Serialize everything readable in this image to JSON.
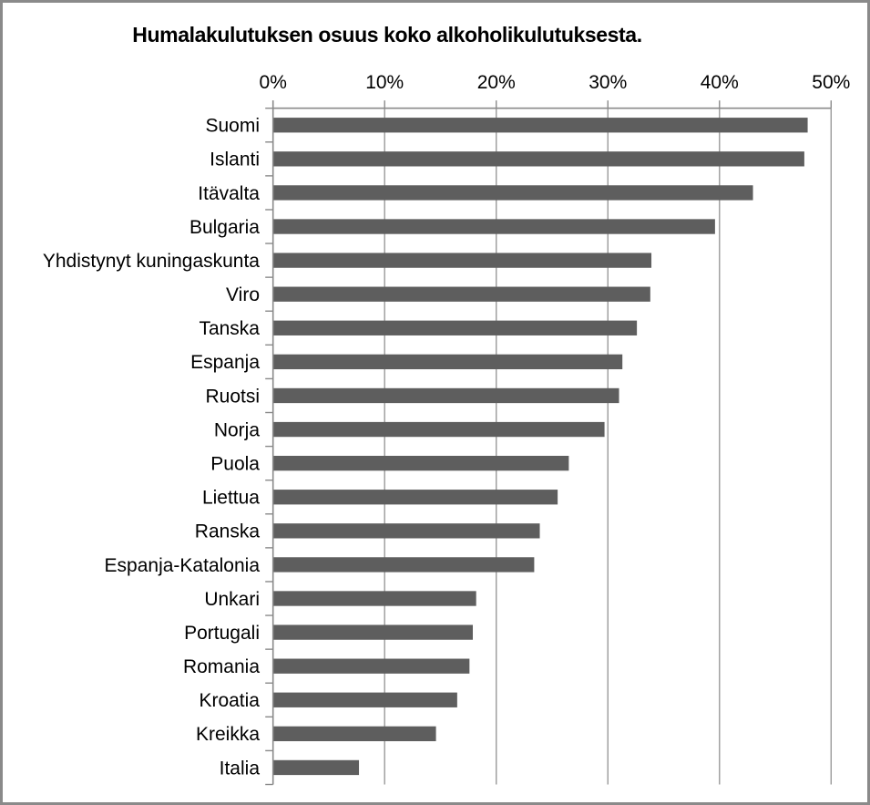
{
  "title": "Humalakulutuksen osuus koko alkoholikulutuksesta.",
  "chart_data": {
    "type": "bar",
    "orientation": "horizontal",
    "title": "Humalakulutuksen osuus koko alkoholikulutuksesta.",
    "categories": [
      "Suomi",
      "Islanti",
      "Itävalta",
      "Bulgaria",
      "Yhdistynyt kuningaskunta",
      "Viro",
      "Tanska",
      "Espanja",
      "Ruotsi",
      "Norja",
      "Puola",
      "Liettua",
      "Ranska",
      "Espanja-Katalonia",
      "Unkari",
      "Portugali",
      "Romania",
      "Kroatia",
      "Kreikka",
      "Italia"
    ],
    "values": [
      47.9,
      47.6,
      43.0,
      39.6,
      33.9,
      33.8,
      32.6,
      31.3,
      31.0,
      29.7,
      26.5,
      25.5,
      23.9,
      23.4,
      18.2,
      17.9,
      17.6,
      16.5,
      14.6,
      7.7
    ],
    "x_tick_labels": [
      "0%",
      "10%",
      "20%",
      "30%",
      "40%",
      "50%"
    ],
    "x_tick_values": [
      0,
      10,
      20,
      30,
      40,
      50
    ],
    "xlim": [
      0,
      50
    ],
    "grid": true,
    "value_axis_position": "top",
    "bar_color": "#5e5e5e",
    "grid_color": "#9a9a9a",
    "axis_color": "#8a8a8a",
    "label_color": "#000000"
  }
}
